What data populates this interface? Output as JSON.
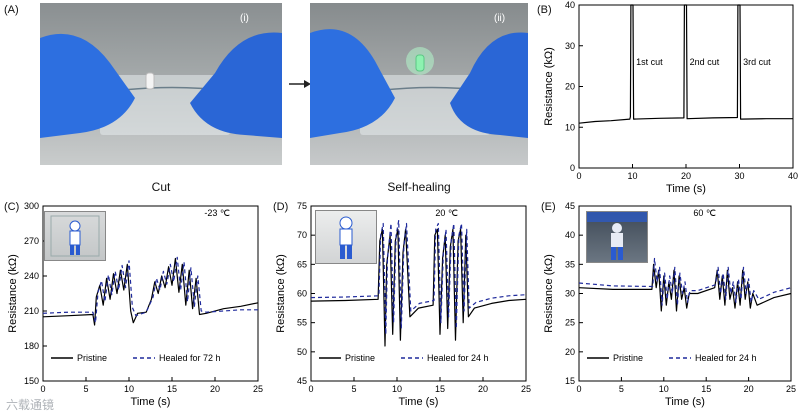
{
  "panels": {
    "A": {
      "label": "(A)",
      "sub_i": "(i)",
      "sub_ii": "(ii)",
      "caption_left": "Cut",
      "caption_right": "Self-healing"
    },
    "B": {
      "label": "(B)"
    },
    "C": {
      "label": "(C)"
    },
    "D": {
      "label": "(D)"
    },
    "E": {
      "label": "(E)"
    }
  },
  "watermark": "六载通镜",
  "chart_data": [
    {
      "id": "B",
      "type": "line",
      "xlabel": "Time (s)",
      "ylabel": "Resistance (kΩ)",
      "xlim": [
        0,
        40
      ],
      "ylim": [
        0,
        40
      ],
      "xticks": [
        0,
        10,
        20,
        30,
        40
      ],
      "yticks": [
        0,
        10,
        20,
        30,
        40
      ],
      "annotations": [
        "1st cut",
        "2nd cut",
        "3rd cut"
      ],
      "series": [
        {
          "color": "#000000",
          "dash": "",
          "x": [
            0,
            3,
            6,
            9.5,
            9.6,
            9.7,
            10.1,
            10.2,
            15,
            19.6,
            19.7,
            20.1,
            20.2,
            25,
            29.6,
            29.7,
            30.1,
            30.2,
            35,
            40
          ],
          "y": [
            11,
            11.4,
            11.6,
            12,
            12.6,
            40,
            40,
            12,
            12.2,
            12.3,
            40,
            40,
            12.1,
            12.3,
            12.4,
            40,
            40,
            12,
            12.1,
            12.1
          ]
        }
      ]
    },
    {
      "id": "C",
      "type": "line",
      "xlabel": "Time (s)",
      "ylabel": "Resistance (kΩ)",
      "xlim": [
        0,
        25
      ],
      "ylim": [
        150,
        300
      ],
      "xticks": [
        0,
        5,
        10,
        15,
        20,
        25
      ],
      "yticks": [
        150,
        180,
        210,
        240,
        270,
        300
      ],
      "annotations": [
        "-23 ℃"
      ],
      "legend": [
        "Pristine",
        "Healed for 72 h"
      ],
      "series": [
        {
          "name": "Pristine",
          "color": "#000000",
          "dash": "",
          "x": [
            0,
            3,
            5.8,
            6,
            6.2,
            6.6,
            7,
            7.4,
            7.8,
            8.2,
            8.6,
            9,
            9.4,
            9.8,
            10.2,
            10.5,
            11,
            12,
            12.6,
            13,
            13.4,
            13.8,
            14.2,
            14.6,
            15,
            15.4,
            15.8,
            16.2,
            16.6,
            17,
            17.4,
            17.8,
            18.2,
            19,
            21,
            23,
            25
          ],
          "y": [
            205,
            206,
            207,
            198,
            222,
            232,
            215,
            238,
            220,
            242,
            225,
            245,
            228,
            250,
            210,
            200,
            208,
            209,
            220,
            235,
            225,
            240,
            230,
            248,
            232,
            255,
            226,
            250,
            215,
            245,
            212,
            238,
            207,
            208,
            212,
            214,
            217
          ]
        },
        {
          "name": "Healed for 72 h",
          "color": "#1f2a9c",
          "dash": "4,3",
          "x": [
            0,
            3,
            5.8,
            6.1,
            6.4,
            6.8,
            7.2,
            7.6,
            8,
            8.4,
            8.8,
            9.2,
            9.6,
            10,
            10.4,
            10.8,
            12,
            12.8,
            13.2,
            13.6,
            14,
            14.4,
            14.8,
            15.2,
            15.6,
            16,
            16.4,
            16.8,
            17.2,
            17.6,
            18,
            18.4,
            19,
            21,
            23,
            25
          ],
          "y": [
            208,
            209,
            209,
            200,
            226,
            236,
            218,
            241,
            224,
            244,
            228,
            249,
            230,
            253,
            213,
            206,
            209,
            222,
            238,
            228,
            244,
            233,
            250,
            235,
            256,
            228,
            252,
            218,
            247,
            214,
            240,
            210,
            209,
            210,
            211,
            211
          ]
        }
      ]
    },
    {
      "id": "D",
      "type": "line",
      "xlabel": "Time (s)",
      "ylabel": "Resistance (kΩ)",
      "xlim": [
        0,
        25
      ],
      "ylim": [
        45,
        75
      ],
      "xticks": [
        0,
        5,
        10,
        15,
        20,
        25
      ],
      "yticks": [
        45,
        50,
        55,
        60,
        65,
        70,
        75
      ],
      "annotations": [
        "20 ℃"
      ],
      "legend": [
        "Pristine",
        "Healed for 24 h"
      ],
      "series": [
        {
          "name": "Pristine",
          "color": "#000000",
          "dash": "",
          "x": [
            0,
            4,
            7.8,
            8,
            8.3,
            8.6,
            8.8,
            9.2,
            9.5,
            9.8,
            10.1,
            10.4,
            10.7,
            11,
            11.5,
            12.5,
            14.2,
            14.4,
            14.7,
            15,
            15.3,
            15.6,
            15.9,
            16.2,
            16.5,
            16.8,
            17.1,
            17.4,
            17.7,
            18,
            18.3,
            19,
            21,
            23,
            25
          ],
          "y": [
            58.7,
            58.8,
            59,
            69,
            71,
            51,
            65,
            70,
            53,
            69,
            71,
            52,
            67,
            71,
            56,
            57.5,
            58,
            70,
            71,
            53,
            66,
            70,
            54,
            68,
            71,
            52,
            69,
            71,
            55,
            70,
            56,
            57.5,
            58.3,
            58.8,
            59
          ]
        },
        {
          "name": "Healed for 24 h",
          "color": "#1f2a9c",
          "dash": "4,3",
          "x": [
            0,
            4,
            7.9,
            8.1,
            8.4,
            8.7,
            8.9,
            9.3,
            9.6,
            9.9,
            10.2,
            10.5,
            10.8,
            11.1,
            11.6,
            12.6,
            14.3,
            14.5,
            14.8,
            15.1,
            15.4,
            15.7,
            16,
            16.3,
            16.6,
            16.9,
            17.2,
            17.5,
            17.8,
            18.1,
            18.4,
            19.2,
            21,
            23,
            25
          ],
          "y": [
            59.3,
            59.4,
            59.6,
            70,
            72,
            53,
            66,
            72,
            55,
            70,
            72.5,
            54,
            68,
            72,
            57,
            58.3,
            58.8,
            71,
            72,
            55,
            67,
            71,
            56,
            69,
            72,
            54,
            70,
            72,
            57,
            71,
            57.5,
            58.5,
            59.2,
            59.6,
            59.8
          ]
        }
      ]
    },
    {
      "id": "E",
      "type": "line",
      "xlabel": "Time (s)",
      "ylabel": "Resistance (kΩ)",
      "xlim": [
        0,
        25
      ],
      "ylim": [
        15,
        45
      ],
      "xticks": [
        0,
        5,
        10,
        15,
        20,
        25
      ],
      "yticks": [
        15,
        20,
        25,
        30,
        35,
        40,
        45
      ],
      "annotations": [
        "60 ℃"
      ],
      "legend": [
        "Pristine",
        "Healed for 24 h"
      ],
      "series": [
        {
          "name": "Pristine",
          "color": "#000000",
          "dash": "",
          "x": [
            0,
            4,
            8.6,
            8.8,
            9.1,
            9.4,
            9.7,
            10,
            10.3,
            10.6,
            10.9,
            11.2,
            11.5,
            11.8,
            12.1,
            12.4,
            12.7,
            13,
            14,
            16,
            16.3,
            16.6,
            16.9,
            17.2,
            17.5,
            17.8,
            18.1,
            18.4,
            18.7,
            19,
            19.3,
            19.6,
            19.9,
            20.2,
            20.5,
            21,
            23,
            25
          ],
          "y": [
            31,
            30.7,
            30.7,
            35,
            31,
            34,
            27,
            33,
            28,
            32,
            29,
            34,
            27,
            33,
            29,
            31,
            27.5,
            30,
            30,
            31,
            34,
            29,
            33,
            28,
            34,
            29,
            31,
            27.5,
            32,
            28,
            34,
            29,
            32,
            27.5,
            30,
            28,
            29.3,
            30
          ]
        },
        {
          "name": "Healed for 24 h",
          "color": "#1f2a9c",
          "dash": "4,3",
          "x": [
            0,
            4,
            8.7,
            8.9,
            9.2,
            9.5,
            9.8,
            10.1,
            10.4,
            10.7,
            11,
            11.3,
            11.6,
            11.9,
            12.2,
            12.5,
            12.8,
            13.1,
            14,
            16.1,
            16.4,
            16.7,
            17,
            17.3,
            17.6,
            17.9,
            18.2,
            18.5,
            18.8,
            19.1,
            19.4,
            19.7,
            20,
            20.3,
            20.6,
            21.2,
            23,
            25
          ],
          "y": [
            31.8,
            31.3,
            31.2,
            36,
            32,
            34.5,
            28,
            33.5,
            29,
            33,
            30,
            34.5,
            28,
            33.5,
            30,
            32,
            28.5,
            30.5,
            30.5,
            31.5,
            34.5,
            30,
            33.5,
            29,
            34.5,
            30,
            32,
            28.5,
            32.5,
            29,
            34.5,
            30,
            32.5,
            28.5,
            30.5,
            29,
            30.2,
            31
          ]
        }
      ]
    }
  ]
}
